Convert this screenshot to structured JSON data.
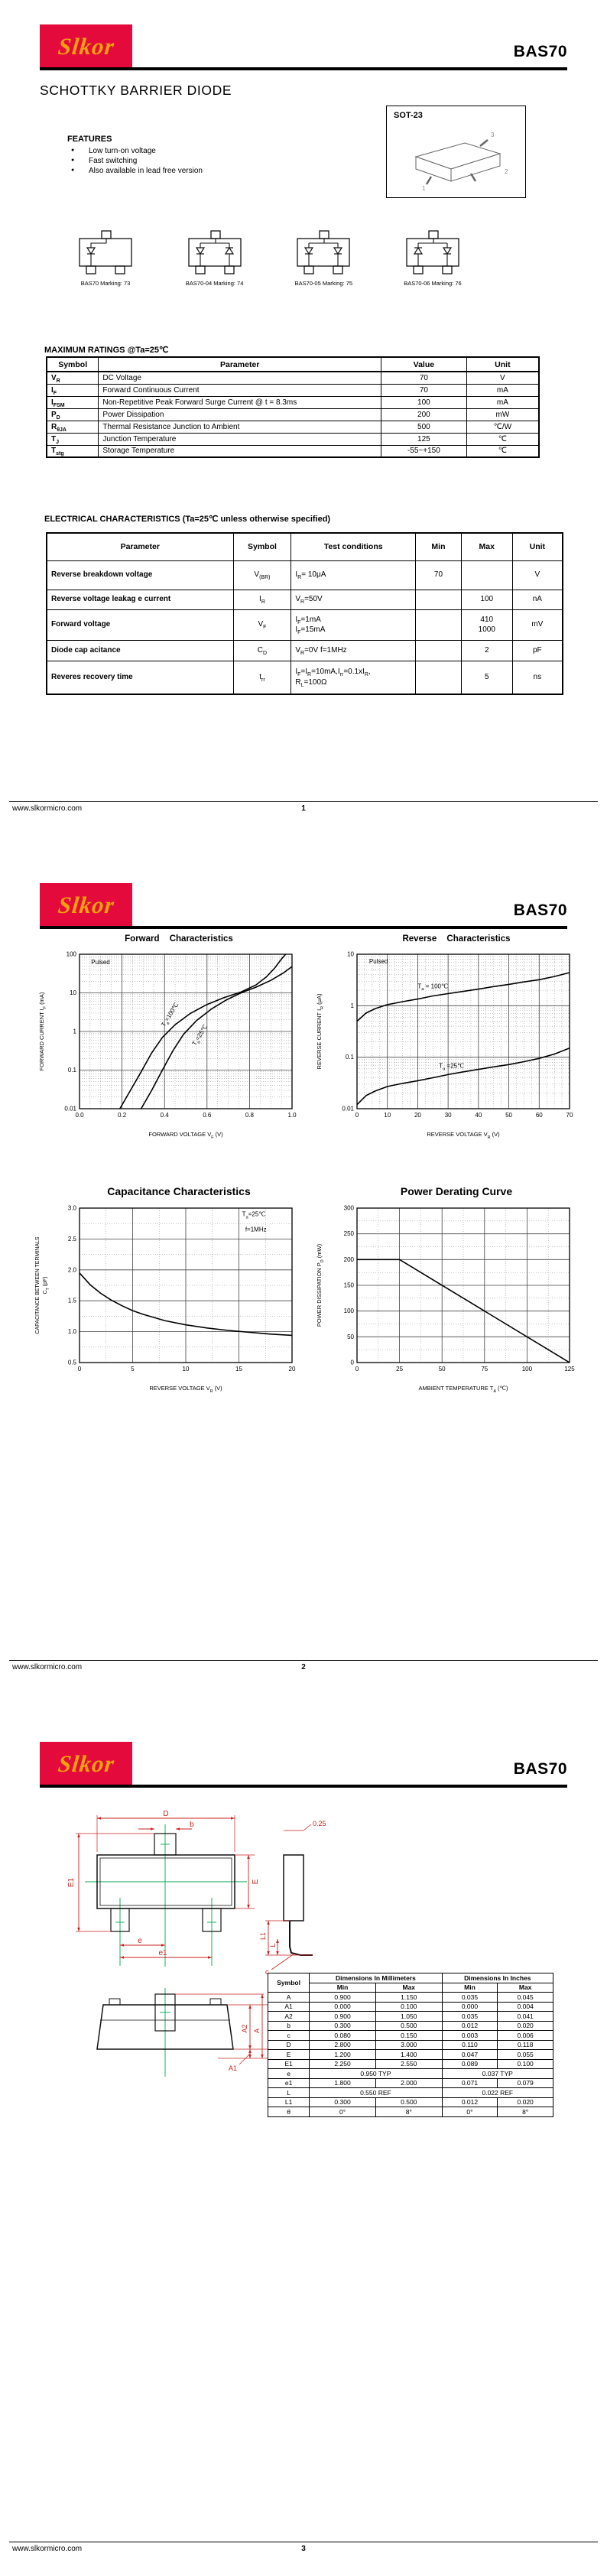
{
  "brand": {
    "logo_text": "Slkor",
    "red": "#E50A3C",
    "yellow": "#F2A20D"
  },
  "product": "BAS70",
  "footer": {
    "site": "www.slkormicro.com",
    "page_numbers": [
      "1",
      "2",
      "3"
    ]
  },
  "page1": {
    "title": "SCHOTTKY BARRIER DIODE",
    "features_heading": "FEATURES",
    "features": [
      "Low turn-on voltage",
      "Fast switching",
      "Also available in lead free version"
    ],
    "package_label": "SOT-23",
    "package_pins": [
      "1",
      "2",
      "3"
    ],
    "markings": [
      {
        "label": "BAS70 Marking: 73",
        "dirs": [
          "d"
        ]
      },
      {
        "label": "BAS70-04 Marking: 74",
        "dirs": [
          "d",
          "u"
        ]
      },
      {
        "label": "BAS70-05 Marking: 75",
        "dirs": [
          "d",
          "d"
        ]
      },
      {
        "label": "BAS70-06 Marking: 76",
        "dirs": [
          "u",
          "d"
        ]
      }
    ],
    "max_ratings": {
      "heading": "MAXIMUM RATINGS @Ta=25℃",
      "headers": [
        "Symbol",
        "Parameter",
        "Value",
        "Unit"
      ],
      "rows": [
        {
          "symbol": "V~R~",
          "parameter": "DC Voltage",
          "value": "70",
          "unit": "V"
        },
        {
          "symbol": "I~F~",
          "parameter": "Forward Continuous Current",
          "value": "70",
          "unit": "mA"
        },
        {
          "symbol": "I~FSM~",
          "parameter": "Non-Repetitive Peak Forward Surge Current @ t = 8.3ms",
          "value": "100",
          "unit": "mA"
        },
        {
          "symbol": "P~D~",
          "parameter": "Power Dissipation",
          "value": "200",
          "unit": "mW"
        },
        {
          "symbol": "R~θJA~",
          "parameter": "Thermal Resistance Junction to Ambient",
          "value": "500",
          "unit": "℃/W"
        },
        {
          "symbol": "T~J~",
          "parameter": "Junction Temperature",
          "value": "125",
          "unit": "℃"
        },
        {
          "symbol": "T~stg~",
          "parameter": "Storage Temperature",
          "value": "-55~+150",
          "unit": "℃"
        }
      ]
    },
    "electrical": {
      "heading": "ELECTRICAL CHARACTERISTICS (Ta=25℃ unless otherwise specified)",
      "headers": [
        "Parameter",
        "Symbol",
        "Test conditions",
        "Min",
        "Max",
        "Unit"
      ],
      "rows": [
        {
          "parameter": "Reverse breakdown voltage",
          "symbol": "V~(BR)~",
          "conditions": [
            "I~R~= 10μA"
          ],
          "min": "70",
          "max": [
            ""
          ],
          "unit": "V"
        },
        {
          "parameter": "Reverse voltage leakag e current",
          "symbol": "I~R~",
          "conditions": [
            "V~R~=50V"
          ],
          "min": "",
          "max": [
            "100"
          ],
          "unit": "nA"
        },
        {
          "parameter": "Forward voltage",
          "symbol": "V~F~",
          "conditions": [
            "I~F~=1mA",
            "I~F~=15mA"
          ],
          "min": "",
          "max": [
            "410",
            "1000"
          ],
          "unit": "mV"
        },
        {
          "parameter": "Diode cap acitance",
          "symbol": "C~D~",
          "conditions": [
            "V~R~=0V f=1MHz"
          ],
          "min": "",
          "max": [
            "2"
          ],
          "unit": "pF"
        },
        {
          "parameter": "Reveres recovery time",
          "symbol": "t~rr~",
          "conditions": [
            "I~F~=I~R~=10mA,I~rr~=0.1xI~R~,",
            "R~L~=100Ω"
          ],
          "min": "",
          "max": [
            "5"
          ],
          "unit": "ns"
        }
      ]
    }
  },
  "chart_data": [
    {
      "type": "line",
      "title": "Forward Characteristics",
      "xlabel": "FORWARD VOLTAGE   V~F~   (V)",
      "ylabel": "FORWARD CURRENT   I~F~   (mA)",
      "x": {
        "min": 0,
        "max": 1.0,
        "ticks": [
          0,
          0.2,
          0.4,
          0.6,
          0.8,
          1.0
        ],
        "tick_labels": [
          "0.0",
          "0.2",
          "0.4",
          "0.6",
          "0.8",
          "1.0"
        ],
        "minor": 0.05
      },
      "y": {
        "log": true,
        "min": 0.01,
        "max": 100,
        "ticks": [
          100,
          10,
          1,
          0.1,
          0.01
        ],
        "tick_labels": [
          "100",
          "10",
          "1",
          "0.1",
          "0.01"
        ]
      },
      "annotations": [
        {
          "text": "Pulsed",
          "x": 0.055,
          "y": 55
        }
      ],
      "series": [
        {
          "name": "T~a~=100℃",
          "label": {
            "x": 0.4,
            "y": 1.3,
            "rotate": -58
          },
          "points": [
            [
              0.19,
              0.01
            ],
            [
              0.24,
              0.03
            ],
            [
              0.29,
              0.09
            ],
            [
              0.34,
              0.28
            ],
            [
              0.39,
              0.7
            ],
            [
              0.45,
              1.5
            ],
            [
              0.52,
              2.9
            ],
            [
              0.6,
              5.0
            ],
            [
              0.68,
              7.5
            ],
            [
              0.76,
              10.5
            ],
            [
              0.83,
              16
            ],
            [
              0.88,
              26
            ],
            [
              0.92,
              45
            ],
            [
              0.95,
              75
            ],
            [
              0.97,
              100
            ]
          ]
        },
        {
          "name": "T~a~=25℃",
          "label": {
            "x": 0.545,
            "y": 0.42,
            "rotate": -58
          },
          "points": [
            [
              0.29,
              0.01
            ],
            [
              0.34,
              0.03
            ],
            [
              0.39,
              0.1
            ],
            [
              0.44,
              0.32
            ],
            [
              0.49,
              0.85
            ],
            [
              0.55,
              1.9
            ],
            [
              0.62,
              3.8
            ],
            [
              0.69,
              6.5
            ],
            [
              0.76,
              10
            ],
            [
              0.83,
              14
            ],
            [
              0.9,
              21
            ],
            [
              0.96,
              33
            ],
            [
              1.0,
              48
            ]
          ]
        }
      ]
    },
    {
      "type": "line",
      "title": "Reverse Characteristics",
      "xlabel": "REVERSE VOLTAGE   V~R~   (V)",
      "ylabel": "REVERSE CURRENT   I~R~   (μA)",
      "x": {
        "min": 0,
        "max": 70,
        "ticks": [
          0,
          10,
          20,
          30,
          40,
          50,
          60,
          70
        ],
        "tick_labels": [
          "0",
          "10",
          "20",
          "30",
          "40",
          "50",
          "60",
          "70"
        ],
        "minor": 2.5
      },
      "y": {
        "log": true,
        "min": 0.01,
        "max": 10,
        "ticks": [
          10,
          1,
          0.1,
          0.01
        ],
        "tick_labels": [
          "10",
          "1",
          "0.1",
          "0.01"
        ]
      },
      "annotations": [
        {
          "text": "Pulsed",
          "x": 4,
          "y": 6.6
        }
      ],
      "series": [
        {
          "name": "T~a~ = 100℃",
          "label": {
            "x": 20,
            "y": 2.2,
            "rotate": 0
          },
          "points": [
            [
              0,
              0.5
            ],
            [
              3,
              0.72
            ],
            [
              6,
              0.88
            ],
            [
              10,
              1.05
            ],
            [
              15,
              1.2
            ],
            [
              20,
              1.35
            ],
            [
              25,
              1.55
            ],
            [
              30,
              1.72
            ],
            [
              35,
              1.9
            ],
            [
              40,
              2.1
            ],
            [
              45,
              2.35
            ],
            [
              50,
              2.6
            ],
            [
              55,
              2.9
            ],
            [
              60,
              3.2
            ],
            [
              65,
              3.7
            ],
            [
              70,
              4.4
            ]
          ]
        },
        {
          "name": "T~a~ =25℃",
          "label": {
            "x": 27,
            "y": 0.062,
            "rotate": 0
          },
          "points": [
            [
              0,
              0.012
            ],
            [
              3,
              0.018
            ],
            [
              6,
              0.022
            ],
            [
              10,
              0.027
            ],
            [
              15,
              0.031
            ],
            [
              20,
              0.035
            ],
            [
              25,
              0.04
            ],
            [
              30,
              0.046
            ],
            [
              35,
              0.052
            ],
            [
              40,
              0.058
            ],
            [
              45,
              0.065
            ],
            [
              50,
              0.072
            ],
            [
              55,
              0.082
            ],
            [
              60,
              0.095
            ],
            [
              65,
              0.115
            ],
            [
              70,
              0.15
            ]
          ]
        }
      ]
    },
    {
      "type": "line",
      "title": "Capacitance Characteristics",
      "xlabel": "REVERSE VOLTAGE   V~R~   (V)",
      "ylabel": "CAPACITANCE BETWEEN TERMINALS",
      "ylabel2": "C~T~   (pF)",
      "x": {
        "min": 0,
        "max": 20,
        "ticks": [
          0,
          5,
          10,
          15,
          20
        ],
        "tick_labels": [
          "0",
          "5",
          "10",
          "15",
          "20"
        ],
        "minor": 2.5
      },
      "y": {
        "log": false,
        "min": 0.5,
        "max": 3.0,
        "ticks": [
          3.0,
          2.5,
          2.0,
          1.5,
          1.0,
          0.5
        ],
        "tick_labels": [
          "3.0",
          "2.5",
          "2.0",
          "1.5",
          "1.0",
          "0.5"
        ],
        "minor": 0.25
      },
      "annotations": [
        {
          "text": "T~a~=25℃",
          "x": 15.3,
          "y": 2.87
        },
        {
          "text": "f=1MHz",
          "x": 15.6,
          "y": 2.62
        }
      ],
      "series": [
        {
          "name": "",
          "points": [
            [
              0,
              1.95
            ],
            [
              1,
              1.76
            ],
            [
              2,
              1.62
            ],
            [
              3,
              1.51
            ],
            [
              4,
              1.42
            ],
            [
              5,
              1.34
            ],
            [
              6,
              1.28
            ],
            [
              7,
              1.23
            ],
            [
              8,
              1.18
            ],
            [
              10,
              1.11
            ],
            [
              12,
              1.06
            ],
            [
              14,
              1.02
            ],
            [
              16,
              0.99
            ],
            [
              18,
              0.96
            ],
            [
              20,
              0.94
            ]
          ]
        }
      ]
    },
    {
      "type": "line",
      "title": "Power Derating Curve",
      "xlabel": "AMBIENT TEMPERATURE   T~A~   (℃)",
      "ylabel": "POWER DISSIPATION   P~D~   (mW)",
      "x": {
        "min": 0,
        "max": 125,
        "ticks": [
          0,
          25,
          50,
          75,
          100,
          125
        ],
        "tick_labels": [
          "0",
          "25",
          "50",
          "75",
          "100",
          "125"
        ],
        "minor": 12.5
      },
      "y": {
        "log": false,
        "min": 0,
        "max": 300,
        "ticks": [
          300,
          250,
          200,
          150,
          100,
          50,
          0
        ],
        "tick_labels": [
          "300",
          "250",
          "200",
          "150",
          "100",
          "50",
          "0"
        ],
        "minor": 25
      },
      "annotations": [],
      "series": [
        {
          "name": "",
          "points": [
            [
              0,
              200
            ],
            [
              25,
              200
            ],
            [
              125,
              0
            ]
          ]
        }
      ]
    }
  ],
  "page3": {
    "dim_labels": {
      "D": "D",
      "b": "b",
      "E1": "E1",
      "E": "E",
      "e": "e",
      "e1": "e1",
      "gauge": "0.25",
      "L1": "L1",
      "L": "L",
      "c": "c",
      "A2": "A2",
      "A": "A",
      "A1": "A1"
    },
    "dim_table": {
      "header_symbol": "Symbol",
      "header_mm": "Dimensions In Millimeters",
      "header_in": "Dimensions In Inches",
      "subheaders": [
        "Min",
        "Max",
        "Min",
        "Max"
      ],
      "rows": [
        [
          "A",
          "0.900",
          "1.150",
          "0.035",
          "0.045"
        ],
        [
          "A1",
          "0.000",
          "0.100",
          "0.000",
          "0.004"
        ],
        [
          "A2",
          "0.900",
          "1.050",
          "0.035",
          "0.041"
        ],
        [
          "b",
          "0.300",
          "0.500",
          "0.012",
          "0.020"
        ],
        [
          "c",
          "0.080",
          "0.150",
          "0.003",
          "0.006"
        ],
        [
          "D",
          "2.800",
          "3.000",
          "0.110",
          "0.118"
        ],
        [
          "E",
          "1.200",
          "1.400",
          "0.047",
          "0.055"
        ],
        [
          "E1",
          "2.250",
          "2.550",
          "0.089",
          "0.100"
        ],
        {
          "symbol": "e",
          "mm": "0.950 TYP",
          "in": "0.037 TYP"
        },
        [
          "e1",
          "1.800",
          "2.000",
          "0.071",
          "0.079"
        ],
        {
          "symbol": "L",
          "mm": "0.550 REF",
          "in": "0.022 REF"
        },
        [
          "L1",
          "0.300",
          "0.500",
          "0.012",
          "0.020"
        ],
        [
          "θ",
          "0°",
          "8°",
          "0°",
          "8°"
        ]
      ]
    }
  }
}
